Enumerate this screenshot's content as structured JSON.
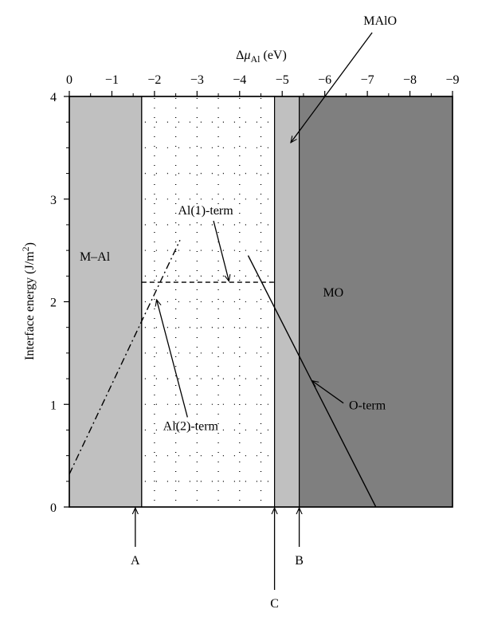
{
  "chart_data": {
    "type": "line",
    "title": "",
    "xlabel": "Δμ_Al (eV)",
    "xlabel_parts": {
      "main": "Δ",
      "mu": "μ",
      "sub": "Al",
      "unit": " (eV)"
    },
    "ylabel": "Interface energy (J/m²)",
    "ylabel_parts": {
      "main": "Interface energy (J/m",
      "sup": "2",
      "close": ")"
    },
    "xlim": [
      0,
      -9
    ],
    "ylim": [
      0,
      4
    ],
    "x_ticks": [
      0,
      -1,
      -2,
      -3,
      -4,
      -5,
      -6,
      -7,
      -8,
      -9
    ],
    "x_tick_labels": [
      "0",
      "−1",
      "−2",
      "−3",
      "−4",
      "−5",
      "−6",
      "−7",
      "−8",
      "−9"
    ],
    "y_ticks": [
      0,
      1,
      2,
      3,
      4
    ],
    "y_tick_labels": [
      "0",
      "1",
      "2",
      "3",
      "4"
    ],
    "x_axis_position": "top",
    "regions": [
      {
        "label": "M–Al",
        "x_from": 0,
        "x_to": -1.7,
        "color": "#c0c0c0",
        "pattern": "none"
      },
      {
        "label": "",
        "x_from": -1.7,
        "x_to": -4.82,
        "color": "#ffffff",
        "pattern": "dotted"
      },
      {
        "label": "MAlO",
        "x_from": -4.82,
        "x_to": -5.4,
        "color": "#c0c0c0",
        "pattern": "none"
      },
      {
        "label": "MO",
        "x_from": -5.4,
        "x_to": -9,
        "color": "#7f7f7f",
        "pattern": "none"
      }
    ],
    "region_label_positions": [
      {
        "text": "M–Al",
        "x": -0.6,
        "y": 2.4
      },
      {
        "text": "MO",
        "x": -6.2,
        "y": 2.05
      }
    ],
    "series": [
      {
        "name": "Al(1)-term",
        "style": "dashed",
        "x": [
          -1.7,
          -4.82
        ],
        "y": [
          2.19,
          2.19
        ]
      },
      {
        "name": "Al(2)-term",
        "style": "dashdot",
        "x": [
          0,
          -2.6
        ],
        "y": [
          0.32,
          2.6
        ]
      },
      {
        "name": "O-term",
        "style": "solid",
        "x": [
          -4.2,
          -7.2
        ],
        "y": [
          2.45,
          0
        ]
      }
    ],
    "annotations": [
      {
        "text": "Al(1)-term",
        "label_x": -3.2,
        "label_y": 2.85,
        "arrow_to_x": -3.75,
        "arrow_to_y": 2.2
      },
      {
        "text": "Al(2)-term",
        "label_x": -2.85,
        "label_y": 0.75,
        "arrow_to_x": -2.05,
        "arrow_to_y": 2.02
      },
      {
        "text": "O-term",
        "label_x": -7.0,
        "label_y": 0.95,
        "arrow_to_x": -5.7,
        "arrow_to_y": 1.23
      },
      {
        "text": "MAlO",
        "label_x": -7.3,
        "label_y": 4.7,
        "arrow_to_x": -5.2,
        "arrow_to_y": 3.55
      }
    ],
    "markers": [
      {
        "text": "A",
        "x": -1.55
      },
      {
        "text": "C",
        "x": -4.82
      },
      {
        "text": "B",
        "x": -5.4
      }
    ],
    "grid": "dotted (middle region only)",
    "legend": "none"
  }
}
